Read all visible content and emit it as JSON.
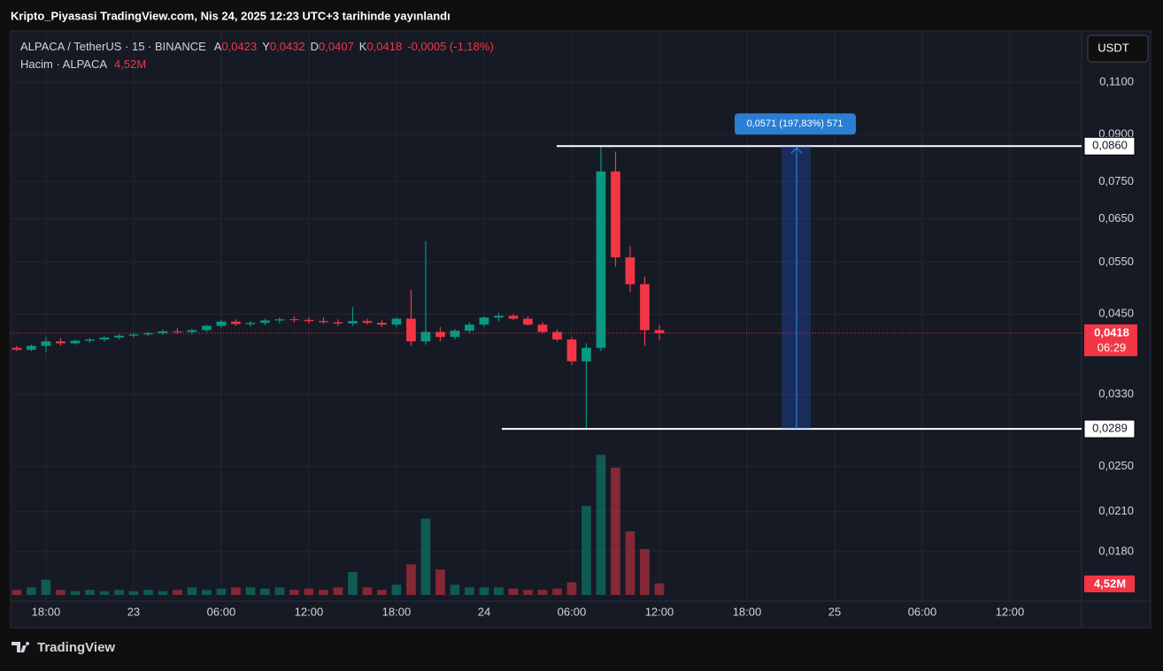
{
  "chart_data": {
    "type": "candlestick",
    "title": "Kripto_Piyasasi TradingView.com, Nis 24, 2025 12:23 UTC+3 tarihinde yayınlandı",
    "symbol": "ALPACA / TetherUS · 15 · BINANCE",
    "ohlc_legend": [
      {
        "key": "A",
        "value": "0,0423"
      },
      {
        "key": "Y",
        "value": "0,0432"
      },
      {
        "key": "D",
        "value": "0,0407"
      },
      {
        "key": "K",
        "value": "0,0418"
      }
    ],
    "change": "-0,0005 (-1,18%)",
    "volume_title": "Hacim · ALPACA",
    "currency": "USDT",
    "brand": "TradingView",
    "up_color": "#089981",
    "down_color": "#f23645",
    "log_scale": true,
    "grid": true,
    "x": [
      16,
      17,
      18,
      19,
      20,
      21,
      22,
      23,
      24,
      25,
      26,
      27,
      28,
      29,
      30,
      31,
      32,
      33,
      34,
      35,
      36,
      37,
      38,
      39,
      40,
      41,
      42,
      43,
      44,
      45,
      46,
      47,
      48,
      49,
      50,
      51,
      52,
      53,
      54,
      55,
      56,
      57,
      58,
      59,
      60
    ],
    "open": [
      0.0395,
      0.0392,
      0.0398,
      0.0405,
      0.0402,
      0.0406,
      0.0408,
      0.0411,
      0.0414,
      0.0416,
      0.0418,
      0.0421,
      0.042,
      0.0423,
      0.043,
      0.0437,
      0.0433,
      0.0435,
      0.0439,
      0.0441,
      0.044,
      0.0438,
      0.0436,
      0.0434,
      0.0438,
      0.0435,
      0.0432,
      0.0442,
      0.0405,
      0.042,
      0.0412,
      0.0422,
      0.0432,
      0.0444,
      0.0447,
      0.0442,
      0.0432,
      0.042,
      0.0408,
      0.0375,
      0.0395,
      0.078,
      0.056,
      0.0505,
      0.0423
    ],
    "high": [
      0.0398,
      0.04,
      0.0412,
      0.041,
      0.0408,
      0.041,
      0.0413,
      0.0416,
      0.0418,
      0.042,
      0.0424,
      0.0426,
      0.0425,
      0.0432,
      0.044,
      0.0441,
      0.0438,
      0.0442,
      0.0444,
      0.0446,
      0.0445,
      0.0444,
      0.0441,
      0.0462,
      0.0442,
      0.044,
      0.0444,
      0.0494,
      0.0596,
      0.0428,
      0.0425,
      0.0436,
      0.0446,
      0.0452,
      0.045,
      0.0446,
      0.0436,
      0.0424,
      0.0412,
      0.0402,
      0.086,
      0.0842,
      0.0585,
      0.052,
      0.0432
    ],
    "low": [
      0.039,
      0.039,
      0.0388,
      0.0398,
      0.04,
      0.0403,
      0.0405,
      0.0408,
      0.0411,
      0.0413,
      0.0415,
      0.0417,
      0.0416,
      0.042,
      0.0427,
      0.043,
      0.0429,
      0.0431,
      0.0434,
      0.0436,
      0.0434,
      0.0433,
      0.043,
      0.043,
      0.0432,
      0.0428,
      0.0428,
      0.0398,
      0.04,
      0.0405,
      0.0408,
      0.0418,
      0.0428,
      0.0438,
      0.044,
      0.043,
      0.0418,
      0.0405,
      0.037,
      0.0289,
      0.039,
      0.054,
      0.049,
      0.0398,
      0.0407
    ],
    "close": [
      0.0392,
      0.0398,
      0.0405,
      0.0402,
      0.0406,
      0.0408,
      0.0411,
      0.0414,
      0.0416,
      0.0418,
      0.0421,
      0.042,
      0.0423,
      0.043,
      0.0437,
      0.0433,
      0.0435,
      0.0439,
      0.0441,
      0.044,
      0.0438,
      0.0436,
      0.0434,
      0.0438,
      0.0435,
      0.0432,
      0.0442,
      0.0405,
      0.042,
      0.0412,
      0.0422,
      0.0432,
      0.0444,
      0.0447,
      0.0442,
      0.0432,
      0.042,
      0.0408,
      0.0375,
      0.0395,
      0.078,
      0.056,
      0.0505,
      0.0423,
      0.0418
    ],
    "volume": [
      2000000,
      3000000,
      6000000,
      2000000,
      1500000,
      2000000,
      1500000,
      2000000,
      1500000,
      2000000,
      1500000,
      2000000,
      3000000,
      2000000,
      2500000,
      3000000,
      3000000,
      2500000,
      3000000,
      2000000,
      2500000,
      2000000,
      3000000,
      9000000,
      3000000,
      2000000,
      4000000,
      12000000,
      30000000,
      10000000,
      4000000,
      3000000,
      3000000,
      3000000,
      2500000,
      2000000,
      2000000,
      2500000,
      5000000,
      35000000,
      55000000,
      50000000,
      25000000,
      18000000,
      4520000
    ],
    "volume_value_label": "4,52M",
    "ylim": [
      0.01487,
      0.1341
    ],
    "yticks": [
      {
        "value": 0.11,
        "label": "0,1100"
      },
      {
        "value": 0.09,
        "label": "0,0900"
      },
      {
        "value": 0.075,
        "label": "0,0750"
      },
      {
        "value": 0.065,
        "label": "0,0650"
      },
      {
        "value": 0.055,
        "label": "0,0550"
      },
      {
        "value": 0.045,
        "label": "0,0450"
      },
      {
        "value": 0.033,
        "label": "0,0330"
      },
      {
        "value": 0.025,
        "label": "0,0250"
      },
      {
        "value": 0.021,
        "label": "0,0210"
      },
      {
        "value": 0.018,
        "label": "0,0180"
      }
    ],
    "xlim": [
      15.58,
      88.91
    ],
    "xticks": [
      {
        "value": 18,
        "label": "18:00"
      },
      {
        "value": 24,
        "label": "23"
      },
      {
        "value": 30,
        "label": "06:00"
      },
      {
        "value": 36,
        "label": "12:00"
      },
      {
        "value": 42,
        "label": "18:00"
      },
      {
        "value": 48,
        "label": "24"
      },
      {
        "value": 54,
        "label": "06:00"
      },
      {
        "value": 60,
        "label": "12:00"
      },
      {
        "value": 66,
        "label": "18:00"
      },
      {
        "value": 72,
        "label": "25"
      },
      {
        "value": 78,
        "label": "06:00"
      },
      {
        "value": 84,
        "label": "12:00"
      }
    ],
    "vlim": [
      0,
      67000000
    ],
    "levels": [
      {
        "value": 0.086,
        "label": "0,0860"
      },
      {
        "value": 0.0289,
        "label": "0,0289"
      }
    ],
    "measure_label": "0,0571 (197,83%) 571",
    "last_price": {
      "value": 0.0418,
      "label": "0,0418"
    },
    "countdown": "06:29"
  }
}
